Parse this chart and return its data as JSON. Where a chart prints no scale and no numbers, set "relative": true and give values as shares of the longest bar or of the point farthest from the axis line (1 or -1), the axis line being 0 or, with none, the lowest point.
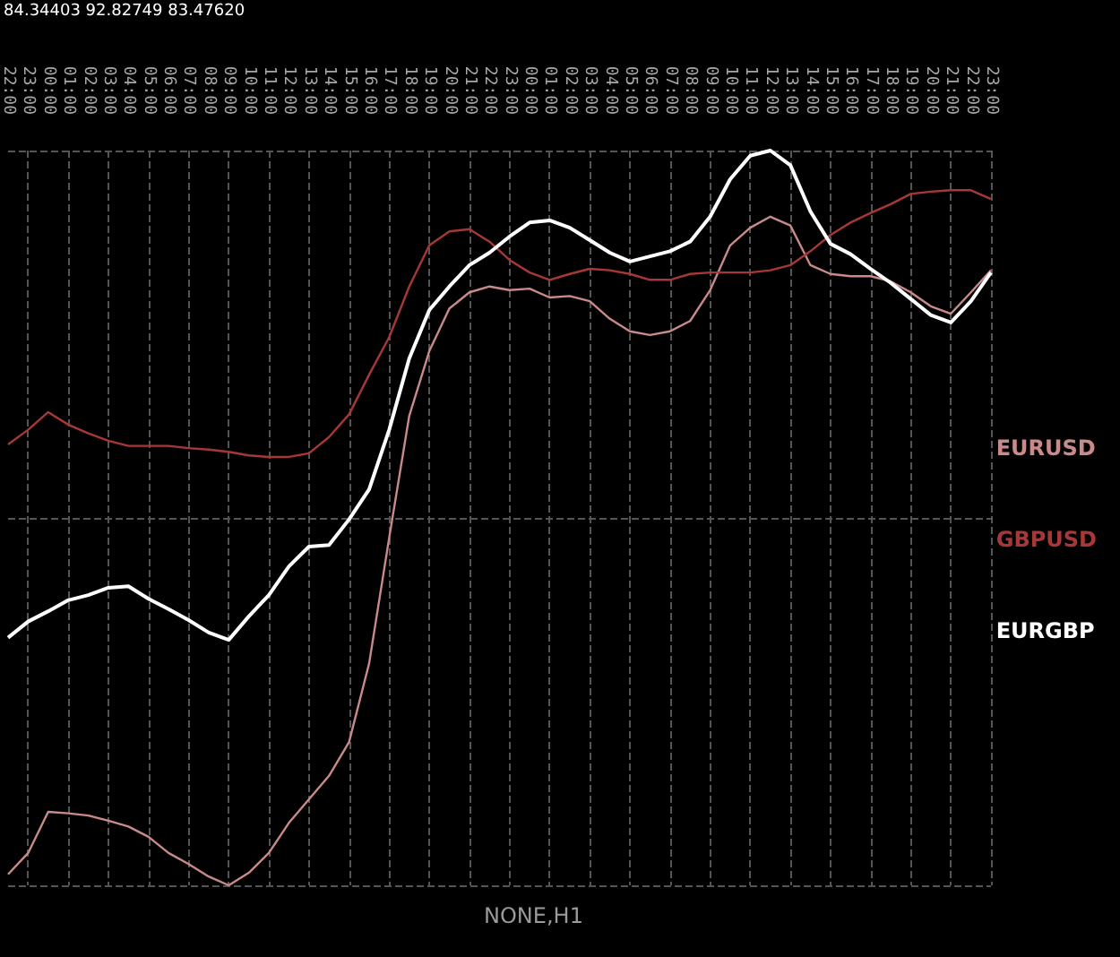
{
  "chart_data": {
    "type": "line",
    "relative": true,
    "grid": true,
    "legend": "right",
    "marker": "none",
    "annotations": [
      "84.34403 92.82749 83.47620",
      "NONE,H1"
    ],
    "categories": [
      "22:00",
      "23:00",
      "00:00",
      "01:00",
      "02:00",
      "03:00",
      "04:00",
      "05:00",
      "06:00",
      "07:00",
      "08:00",
      "09:00",
      "10:00",
      "11:00",
      "12:00",
      "13:00",
      "14:00",
      "15:00",
      "16:00",
      "17:00",
      "18:00",
      "19:00",
      "20:00",
      "21:00",
      "22:00",
      "23:00",
      "00:00",
      "01:00",
      "02:00",
      "03:00",
      "04:00",
      "05:00",
      "06:00",
      "07:00",
      "08:00",
      "09:00",
      "10:00",
      "11:00",
      "12:00",
      "13:00",
      "14:00",
      "15:00",
      "16:00",
      "17:00",
      "18:00",
      "19:00",
      "20:00",
      "21:00",
      "22:00",
      "23:00"
    ],
    "series": [
      {
        "name": "EURUSD",
        "color": "#c88a8a",
        "values": [
          0.015,
          0.044,
          0.1,
          0.098,
          0.095,
          0.088,
          0.08,
          0.066,
          0.044,
          0.029,
          0.012,
          0,
          0.017,
          0.044,
          0.085,
          0.117,
          0.149,
          0.195,
          0.302,
          0.473,
          0.639,
          0.727,
          0.785,
          0.807,
          0.815,
          0.81,
          0.812,
          0.8,
          0.802,
          0.795,
          0.771,
          0.754,
          0.749,
          0.754,
          0.768,
          0.81,
          0.871,
          0.895,
          0.91,
          0.898,
          0.844,
          0.832,
          0.829,
          0.829,
          0.822,
          0.807,
          0.788,
          0.778,
          0.807,
          0.837
        ]
      },
      {
        "name": "GBPUSD",
        "color": "#a83838",
        "values": [
          0.6,
          0.62,
          0.644,
          0.627,
          0.615,
          0.605,
          0.598,
          0.598,
          0.598,
          0.595,
          0.593,
          0.59,
          0.585,
          0.583,
          0.583,
          0.588,
          0.61,
          0.641,
          0.695,
          0.746,
          0.815,
          0.871,
          0.89,
          0.893,
          0.876,
          0.851,
          0.834,
          0.824,
          0.832,
          0.839,
          0.837,
          0.832,
          0.824,
          0.824,
          0.832,
          0.834,
          0.834,
          0.834,
          0.837,
          0.844,
          0.863,
          0.885,
          0.902,
          0.915,
          0.927,
          0.941,
          0.944,
          0.946,
          0.946,
          0.934
        ]
      },
      {
        "name": "EURGBP",
        "color": "#ffffff",
        "values": [
          0.337,
          0.359,
          0.373,
          0.388,
          0.395,
          0.405,
          0.407,
          0.39,
          0.376,
          0.361,
          0.344,
          0.334,
          0.366,
          0.395,
          0.434,
          0.461,
          0.463,
          0.498,
          0.539,
          0.62,
          0.717,
          0.783,
          0.815,
          0.844,
          0.861,
          0.883,
          0.902,
          0.905,
          0.895,
          0.878,
          0.861,
          0.849,
          0.856,
          0.863,
          0.876,
          0.91,
          0.961,
          0.993,
          1,
          0.98,
          0.917,
          0.873,
          0.859,
          0.839,
          0.82,
          0.798,
          0.776,
          0.766,
          0.795,
          0.834
        ]
      }
    ]
  }
}
